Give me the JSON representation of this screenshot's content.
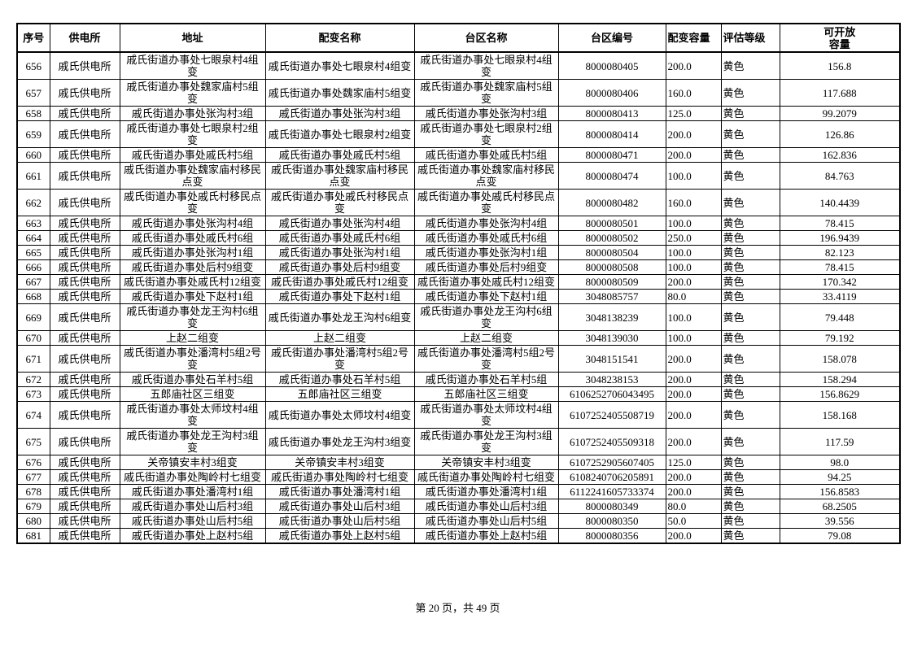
{
  "page": {
    "footer": "第 20 页，共 49 页"
  },
  "table": {
    "headers": [
      "序号",
      "供电所",
      "地址",
      "配变名称",
      "台区名称",
      "台区编号",
      "配变容量",
      "评估等级",
      "可开放\n容量"
    ],
    "column_alignments": [
      "center",
      "center",
      "center",
      "center",
      "center",
      "center",
      "left",
      "left",
      "center"
    ],
    "rows": [
      [
        "656",
        "戚氏供电所",
        "戚氏街道办事处七眼泉村4组变",
        "戚氏街道办事处七眼泉村4组变",
        "戚氏街道办事处七眼泉村4组变",
        "8000080405",
        "200.0",
        "黄色",
        "156.8"
      ],
      [
        "657",
        "戚氏供电所",
        "戚氏街道办事处魏家庙村5组变",
        "戚氏街道办事处魏家庙村5组变",
        "戚氏街道办事处魏家庙村5组变",
        "8000080406",
        "160.0",
        "黄色",
        "117.688"
      ],
      [
        "658",
        "戚氏供电所",
        "戚氏街道办事处张沟村3组",
        "戚氏街道办事处张沟村3组",
        "戚氏街道办事处张沟村3组",
        "8000080413",
        "125.0",
        "黄色",
        "99.2079"
      ],
      [
        "659",
        "戚氏供电所",
        "戚氏街道办事处七眼泉村2组变",
        "戚氏街道办事处七眼泉村2组变",
        "戚氏街道办事处七眼泉村2组变",
        "8000080414",
        "200.0",
        "黄色",
        "126.86"
      ],
      [
        "660",
        "戚氏供电所",
        "戚氏街道办事处戚氏村5组",
        "戚氏街道办事处戚氏村5组",
        "戚氏街道办事处戚氏村5组",
        "8000080471",
        "200.0",
        "黄色",
        "162.836"
      ],
      [
        "661",
        "戚氏供电所",
        "戚氏街道办事处魏家庙村移民点变",
        "戚氏街道办事处魏家庙村移民点变",
        "戚氏街道办事处魏家庙村移民点变",
        "8000080474",
        "100.0",
        "黄色",
        "84.763"
      ],
      [
        "662",
        "戚氏供电所",
        "戚氏街道办事处戚氏村移民点变",
        "戚氏街道办事处戚氏村移民点变",
        "戚氏街道办事处戚氏村移民点变",
        "8000080482",
        "160.0",
        "黄色",
        "140.4439"
      ],
      [
        "663",
        "戚氏供电所",
        "戚氏街道办事处张沟村4组",
        "戚氏街道办事处张沟村4组",
        "戚氏街道办事处张沟村4组",
        "8000080501",
        "100.0",
        "黄色",
        "78.415"
      ],
      [
        "664",
        "戚氏供电所",
        "戚氏街道办事处戚氏村6组",
        "戚氏街道办事处戚氏村6组",
        "戚氏街道办事处戚氏村6组",
        "8000080502",
        "250.0",
        "黄色",
        "196.9439"
      ],
      [
        "665",
        "戚氏供电所",
        "戚氏街道办事处张沟村1组",
        "戚氏街道办事处张沟村1组",
        "戚氏街道办事处张沟村1组",
        "8000080504",
        "100.0",
        "黄色",
        "82.123"
      ],
      [
        "666",
        "戚氏供电所",
        "戚氏街道办事处后村9组变",
        "戚氏街道办事处后村9组变",
        "戚氏街道办事处后村9组变",
        "8000080508",
        "100.0",
        "黄色",
        "78.415"
      ],
      [
        "667",
        "戚氏供电所",
        "戚氏街道办事处戚氏村12组变",
        "戚氏街道办事处戚氏村12组变",
        "戚氏街道办事处戚氏村12组变",
        "8000080509",
        "200.0",
        "黄色",
        "170.342"
      ],
      [
        "668",
        "戚氏供电所",
        "戚氏街道办事处下赵村1组",
        "戚氏街道办事处下赵村1组",
        "戚氏街道办事处下赵村1组",
        "3048085757",
        "80.0",
        "黄色",
        "33.4119"
      ],
      [
        "669",
        "戚氏供电所",
        "戚氏街道办事处龙王沟村6组变",
        "戚氏街道办事处龙王沟村6组变",
        "戚氏街道办事处龙王沟村6组变",
        "3048138239",
        "100.0",
        "黄色",
        "79.448"
      ],
      [
        "670",
        "戚氏供电所",
        "上赵二组变",
        "上赵二组变",
        "上赵二组变",
        "3048139030",
        "100.0",
        "黄色",
        "79.192"
      ],
      [
        "671",
        "戚氏供电所",
        "戚氏街道办事处潘湾村5组2号变",
        "戚氏街道办事处潘湾村5组2号变",
        "戚氏街道办事处潘湾村5组2号变",
        "3048151541",
        "200.0",
        "黄色",
        "158.078"
      ],
      [
        "672",
        "戚氏供电所",
        "戚氏街道办事处石羊村5组",
        "戚氏街道办事处石羊村5组",
        "戚氏街道办事处石羊村5组",
        "3048238153",
        "200.0",
        "黄色",
        "158.294"
      ],
      [
        "673",
        "戚氏供电所",
        "五郎庙社区三组变",
        "五郎庙社区三组变",
        "五郎庙社区三组变",
        "6106252706043495",
        "200.0",
        "黄色",
        "156.8629"
      ],
      [
        "674",
        "戚氏供电所",
        "戚氏街道办事处太师坟村4组变",
        "戚氏街道办事处太师坟村4组变",
        "戚氏街道办事处太师坟村4组变",
        "6107252405508719",
        "200.0",
        "黄色",
        "158.168"
      ],
      [
        "675",
        "戚氏供电所",
        "戚氏街道办事处龙王沟村3组变",
        "戚氏街道办事处龙王沟村3组变",
        "戚氏街道办事处龙王沟村3组变",
        "6107252405509318",
        "200.0",
        "黄色",
        "117.59"
      ],
      [
        "676",
        "戚氏供电所",
        "关帝镇安丰村3组变",
        "关帝镇安丰村3组变",
        "关帝镇安丰村3组变",
        "6107252905607405",
        "125.0",
        "黄色",
        "98.0"
      ],
      [
        "677",
        "戚氏供电所",
        "戚氏街道办事处陶岭村七组变",
        "戚氏街道办事处陶岭村七组变",
        "戚氏街道办事处陶岭村七组变",
        "6108240706205891",
        "200.0",
        "黄色",
        "94.25"
      ],
      [
        "678",
        "戚氏供电所",
        "戚氏街道办事处潘湾村1组",
        "戚氏街道办事处潘湾村1组",
        "戚氏街道办事处潘湾村1组",
        "6112241605733374",
        "200.0",
        "黄色",
        "156.8583"
      ],
      [
        "679",
        "戚氏供电所",
        "戚氏街道办事处山后村3组",
        "戚氏街道办事处山后村3组",
        "戚氏街道办事处山后村3组",
        "8000080349",
        "80.0",
        "黄色",
        "68.2505"
      ],
      [
        "680",
        "戚氏供电所",
        "戚氏街道办事处山后村5组",
        "戚氏街道办事处山后村5组",
        "戚氏街道办事处山后村5组",
        "8000080350",
        "50.0",
        "黄色",
        "39.556"
      ],
      [
        "681",
        "戚氏供电所",
        "戚氏街道办事处上赵村5组",
        "戚氏街道办事处上赵村5组",
        "戚氏街道办事处上赵村5组",
        "8000080356",
        "200.0",
        "黄色",
        "79.08"
      ]
    ]
  }
}
